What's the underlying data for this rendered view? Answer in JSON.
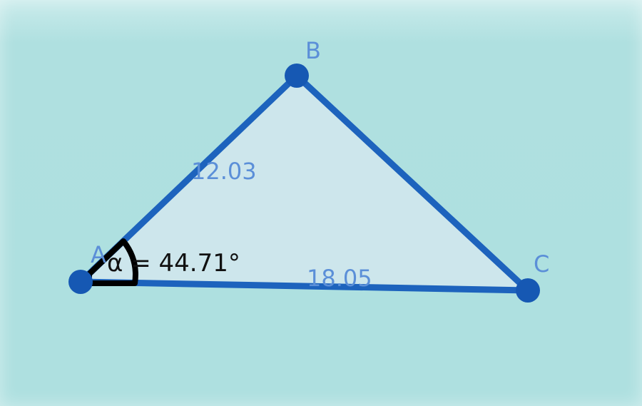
{
  "colors": {
    "background": "#aee0e0",
    "polygon_fill": "#cde6ec",
    "segment": "#1d63bd",
    "point": "#1658b3",
    "label": "#5b8fd8",
    "angle_text": "#111111",
    "angle_mark": "#000000"
  },
  "points": [
    {
      "id": "A",
      "label": "A"
    },
    {
      "id": "B",
      "label": "B"
    },
    {
      "id": "C",
      "label": "C"
    }
  ],
  "segments": [
    {
      "id": "AB",
      "label": "12.03"
    },
    {
      "id": "AC",
      "label": "18.05"
    }
  ],
  "angle": {
    "vertex": "A",
    "label": "α = 44.71°"
  }
}
